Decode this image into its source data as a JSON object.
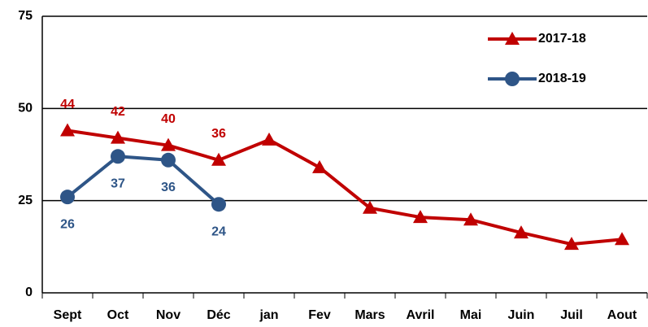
{
  "chart_data": {
    "type": "line",
    "categories": [
      "Sept",
      "Oct",
      "Nov",
      "Déc",
      "jan",
      "Fev",
      "Mars",
      "Avril",
      "Mai",
      "Juin",
      "Juil",
      "Aout"
    ],
    "series": [
      {
        "name": "2017-18",
        "color": "#c00000",
        "marker": "triangle",
        "label_position": "above",
        "values": [
          44,
          42,
          40,
          36,
          41.5,
          34,
          23,
          20.5,
          19.8,
          16.3,
          13.2,
          14.5
        ],
        "value_labels": [
          "44",
          "42",
          "40",
          "36",
          null,
          null,
          null,
          null,
          null,
          null,
          null,
          null
        ]
      },
      {
        "name": "2018-19",
        "color": "#2e5587",
        "marker": "circle",
        "label_position": "below",
        "values": [
          26,
          37,
          36,
          24,
          null,
          null,
          null,
          null,
          null,
          null,
          null,
          null
        ],
        "value_labels": [
          "26",
          "37",
          "36",
          "24",
          null,
          null,
          null,
          null,
          null,
          null,
          null,
          null
        ]
      }
    ],
    "ylim": [
      0,
      75
    ],
    "yticks": [
      0,
      25,
      50,
      75
    ],
    "grid": true,
    "legend": "upper right"
  }
}
